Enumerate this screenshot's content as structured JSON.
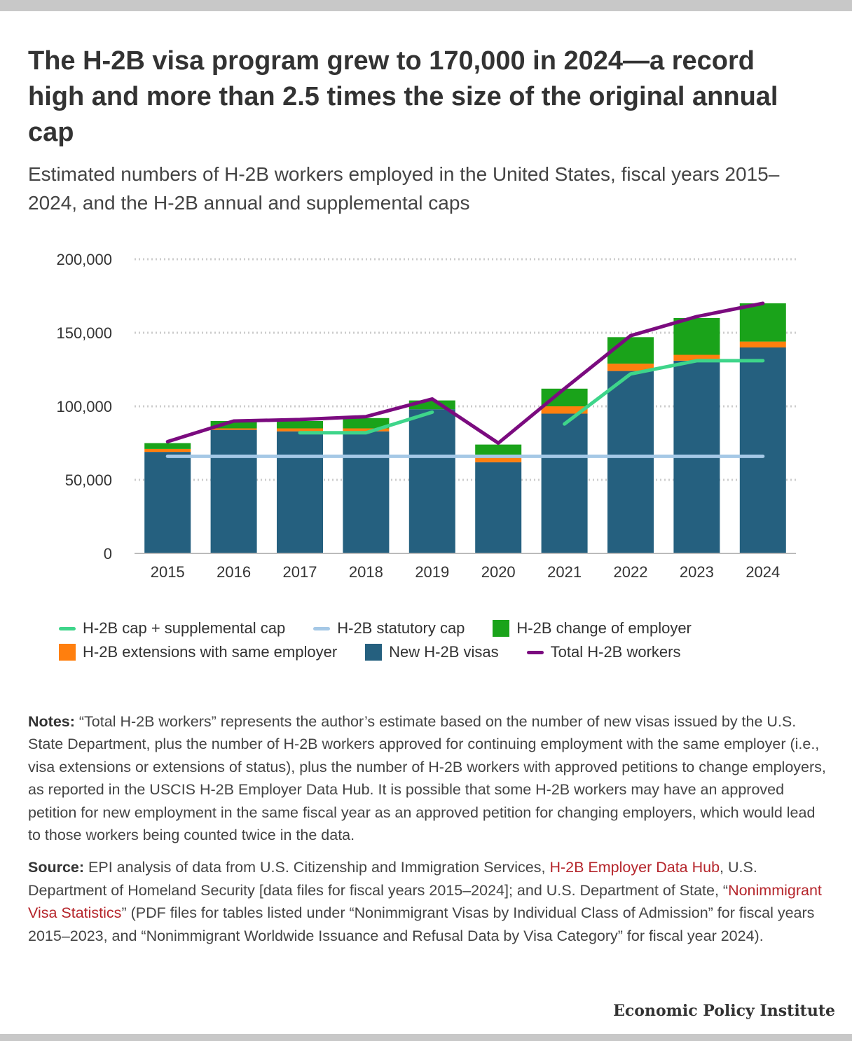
{
  "header": {
    "title": "The H-2B visa program grew to 170,000 in 2024—a record high and more than 2.5 times the size of the original annual cap",
    "subtitle": "Estimated numbers of H-2B workers employed in the United States, fiscal years 2015–2024, and the H-2B annual and supplemental caps"
  },
  "chart_data": {
    "type": "bar",
    "stacked": true,
    "categories": [
      "2015",
      "2016",
      "2017",
      "2018",
      "2019",
      "2020",
      "2021",
      "2022",
      "2023",
      "2024"
    ],
    "y_ticks": [
      0,
      50000,
      100000,
      150000,
      200000
    ],
    "y_tick_labels": [
      "0",
      "50,000",
      "100,000",
      "150,000",
      "200,000"
    ],
    "ylim": [
      0,
      200000
    ],
    "grid": true,
    "legend_position": "bottom",
    "colors": {
      "new": "#25607f",
      "extensions": "#ff7f0e",
      "change": "#1aa31a",
      "total": "#7b0b7f",
      "supplemental": "#3ed58a",
      "statutory": "#a5c8e6"
    },
    "series": [
      {
        "key": "new",
        "name": "New H-2B visas",
        "values": [
          69000,
          84000,
          83000,
          83000,
          98000,
          62000,
          95000,
          124000,
          131000,
          140000
        ]
      },
      {
        "key": "extensions",
        "name": "H-2B extensions with same employer",
        "values": [
          2000,
          1000,
          2000,
          2000,
          0,
          3000,
          5000,
          5000,
          4000,
          4000
        ]
      },
      {
        "key": "change",
        "name": "H-2B change of employer",
        "values": [
          4000,
          5000,
          5000,
          7000,
          6000,
          9000,
          12000,
          18000,
          25000,
          26000
        ]
      },
      {
        "key": "total",
        "name": "Total H-2B workers",
        "type": "line",
        "values": [
          76000,
          90000,
          91000,
          93000,
          105000,
          75000,
          112000,
          148000,
          161000,
          170000
        ]
      },
      {
        "key": "supplemental",
        "name": "H-2B cap + supplemental cap",
        "type": "line",
        "values": [
          null,
          null,
          82000,
          82000,
          96000,
          null,
          88000,
          122000,
          131000,
          131000
        ]
      },
      {
        "key": "statutory",
        "name": "H-2B statutory cap",
        "type": "line",
        "values": [
          66000,
          66000,
          66000,
          66000,
          66000,
          66000,
          66000,
          66000,
          66000,
          66000
        ]
      }
    ]
  },
  "legend": {
    "row1": [
      {
        "kind": "line",
        "color": "#3ed58a",
        "label": "H-2B cap + supplemental cap"
      },
      {
        "kind": "line",
        "color": "#a5c8e6",
        "label": "H-2B statutory cap"
      },
      {
        "kind": "box",
        "color": "#1aa31a",
        "label": "H-2B change of employer"
      }
    ],
    "row2": [
      {
        "kind": "box",
        "color": "#ff7f0e",
        "label": "H-2B extensions with same employer"
      },
      {
        "kind": "box",
        "color": "#25607f",
        "label": "New H-2B visas"
      },
      {
        "kind": "line",
        "color": "#7b0b7f",
        "label": "Total H-2B workers"
      }
    ]
  },
  "notes": {
    "label": "Notes:",
    "text": "“Total H-2B workers” represents the author’s estimate based on the number of new visas issued by the U.S. State Department, plus the number of H-2B workers approved for continuing employment with the same employer (i.e., visa extensions or extensions of status), plus the number of H-2B workers with approved petitions to change employers, as reported in the USCIS H-2B Employer Data Hub. It is possible that some H-2B workers may have an approved petition for new employment in the same fiscal year as an approved petition for changing employers, which would lead to those workers being counted twice in the data."
  },
  "source": {
    "label": "Source:",
    "part1": "EPI analysis of data from U.S. Citizenship and Immigration Services,",
    "link1": "H-2B Employer Data Hub",
    "part2": ", U.S. Department of Homeland Security [data files for fiscal years 2015–2024]; and U.S. Department of State, “",
    "link2": "Nonimmigrant Visa Statistics",
    "part3": "” (PDF files for tables listed under “Nonimmigrant Visas by Individual Class of Admission” for fiscal years 2015–2023, and “Nonimmigrant Worldwide Issuance and Refusal Data by Visa Category” for fiscal year 2024)."
  },
  "brand": "Economic Policy Institute"
}
